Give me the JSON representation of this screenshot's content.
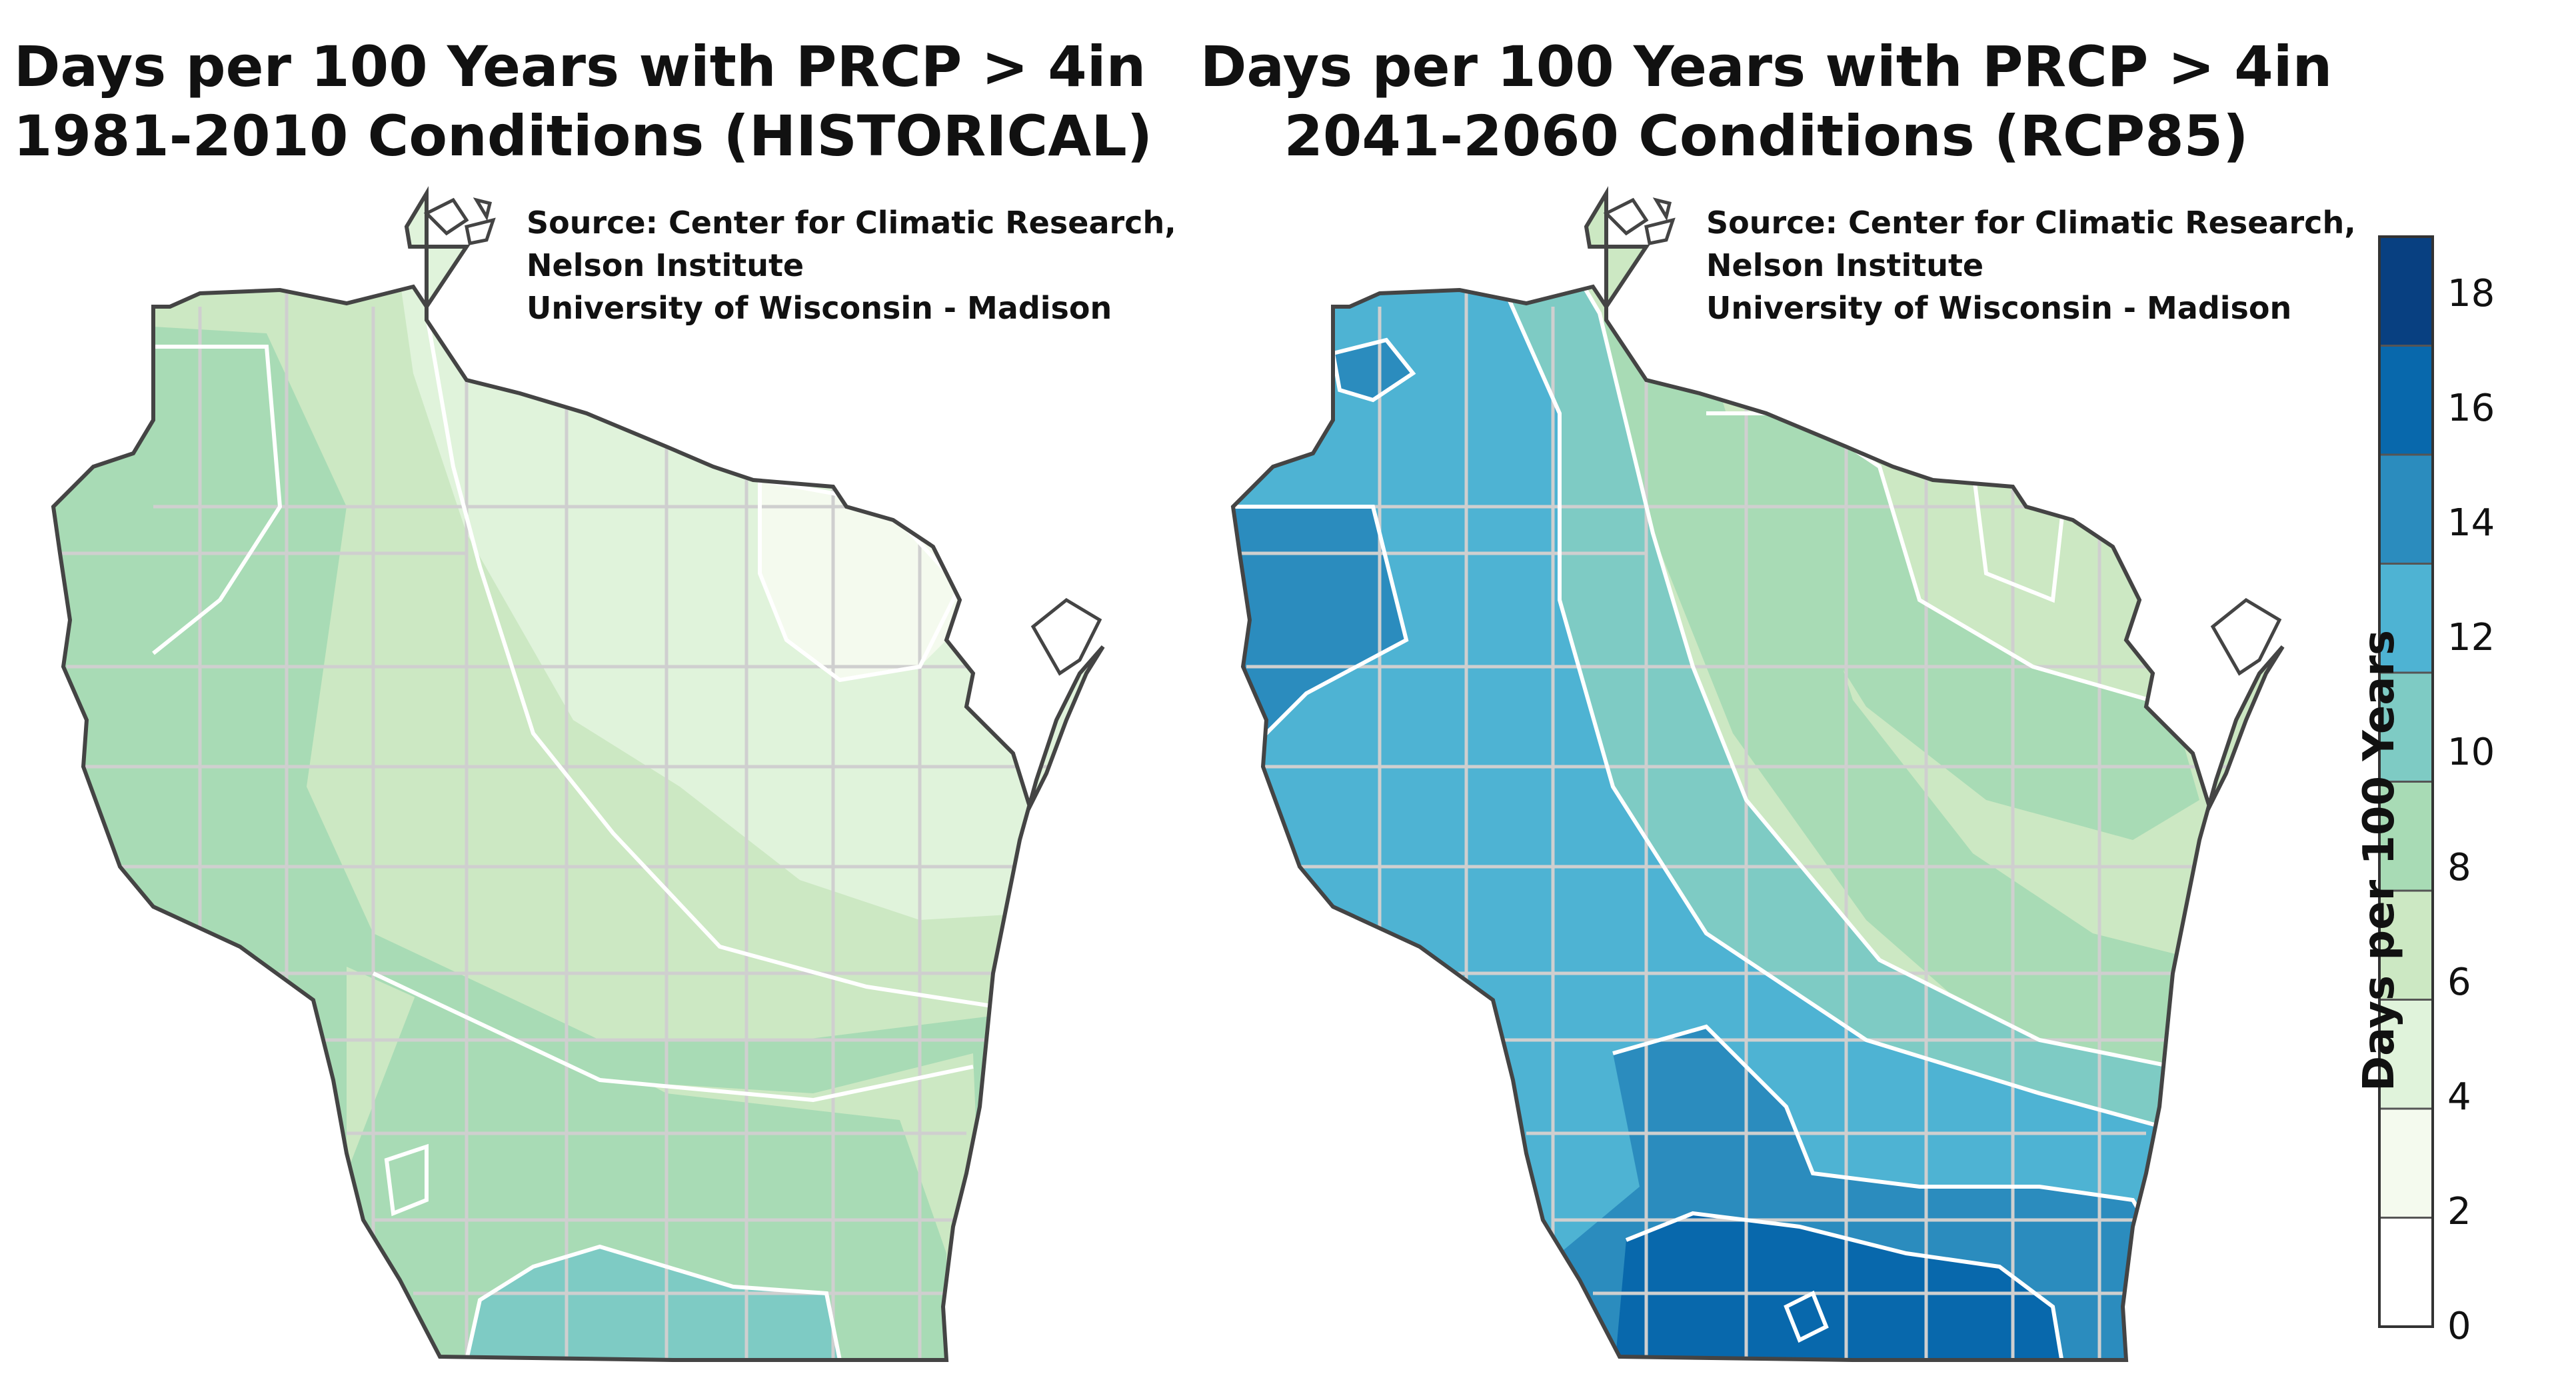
{
  "maps": [
    {
      "title_line1": "Days per 100 Years with PRCP > 4in",
      "title_line2": "1981-2010 Conditions (HISTORICAL)",
      "source_line1": "Source:  Center for Climatic Research,",
      "source_line2": "Nelson Institute",
      "source_line3": "University of Wisconsin - Madison"
    },
    {
      "title_line1": "Days per 100 Years with PRCP > 4in",
      "title_line2": "2041-2060 Conditions (RCP85)",
      "source_line1": "Source:  Center for Climatic Research,",
      "source_line2": "Nelson Institute",
      "source_line3": "University of Wisconsin - Madison"
    }
  ],
  "colorbar": {
    "title": "Days per 100 Years",
    "ticks": [
      "18",
      "16",
      "14",
      "12",
      "10",
      "8",
      "6",
      "4",
      "2",
      "0"
    ],
    "bins": [
      {
        "range": "0-1",
        "color": "#ffffff"
      },
      {
        "range": "1-3",
        "color": "#f4faee"
      },
      {
        "range": "3-5",
        "color": "#e0f3db"
      },
      {
        "range": "5-7",
        "color": "#cce8c3"
      },
      {
        "range": "7-9",
        "color": "#a8dbb5"
      },
      {
        "range": "9-11",
        "color": "#7ecbc4"
      },
      {
        "range": "11-13",
        "color": "#4eb3d3"
      },
      {
        "range": "13-15",
        "color": "#2b8cbe"
      },
      {
        "range": "15-17",
        "color": "#0868ac"
      },
      {
        "range": "17-19",
        "color": "#084081"
      }
    ]
  }
}
